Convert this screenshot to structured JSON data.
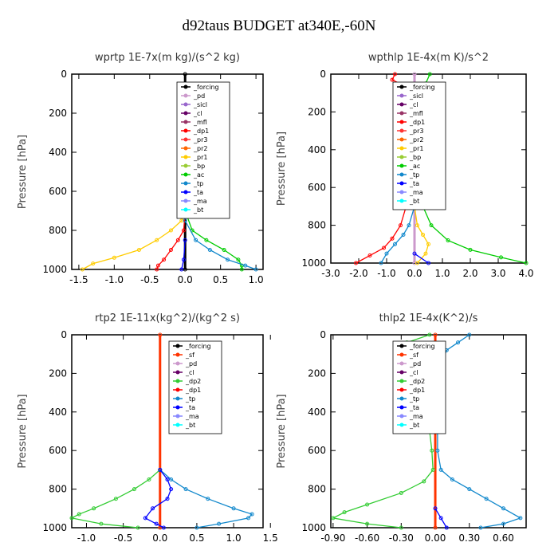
{
  "title": "d92taus  BUDGET at340E,-60N",
  "ylabel": "Pressure [hPa]",
  "colors": {
    "forcing": "#000000",
    "pd": "#cc99cc",
    "sicl": "#9966cc",
    "cl": "#660066",
    "mfl": "#993366",
    "dp1": "#ff0000",
    "pr3": "#ff3333",
    "pr2": "#ff6600",
    "pr1": "#ffcc00",
    "bp": "#99cc33",
    "ac": "#00cc00",
    "tp": "#1188cc",
    "ta": "#0000ff",
    "ma": "#8888ff",
    "bt": "#00ffff",
    "sf": "#ff3300",
    "dp2": "#33cc33"
  },
  "chart_data": [
    {
      "type": "line",
      "title": "wprtp  1E-7x(m kg)/(s^2 kg)",
      "xlim": [
        -1.6,
        1.1
      ],
      "xticks": [
        "-1.5",
        "-1.0",
        "-0.5",
        "0.0",
        "0.5",
        "1.0"
      ],
      "xtick_values": [
        -1.5,
        -1.0,
        -0.5,
        0.0,
        0.5,
        1.0
      ],
      "ylim": [
        1000,
        0
      ],
      "yticks": [
        "0",
        "200",
        "400",
        "600",
        "800",
        "1000"
      ],
      "ytick_values": [
        0,
        200,
        400,
        600,
        800,
        1000
      ],
      "legend": [
        "_forcing",
        "_pd",
        "_sicl",
        "_cl",
        "_mfl",
        "_dp1",
        "_pr3",
        "_pr2",
        "_pr1",
        "_bp",
        "_ac",
        "_tp",
        "_ta",
        "_ma",
        "_bt"
      ],
      "series": [
        {
          "name": "_forcing",
          "color_key": "forcing",
          "p": [
            0,
            1000
          ],
          "v": [
            0,
            0
          ]
        },
        {
          "name": "_pr1",
          "color_key": "pr1",
          "p": [
            700,
            750,
            800,
            850,
            900,
            940,
            970,
            1000
          ],
          "v": [
            0,
            -0.05,
            -0.2,
            -0.4,
            -0.65,
            -1.0,
            -1.3,
            -1.45
          ]
        },
        {
          "name": "_dp1",
          "color_key": "dp1",
          "p": [
            700,
            800,
            850,
            900,
            950,
            980,
            1000
          ],
          "v": [
            0,
            -0.02,
            -0.1,
            -0.2,
            -0.3,
            -0.38,
            -0.4
          ]
        },
        {
          "name": "_ac",
          "color_key": "ac",
          "p": [
            700,
            800,
            850,
            900,
            950,
            980,
            1000
          ],
          "v": [
            0,
            0.1,
            0.3,
            0.55,
            0.75,
            0.8,
            0.8
          ]
        },
        {
          "name": "_tp",
          "color_key": "tp",
          "p": [
            750,
            850,
            900,
            950,
            980,
            1000
          ],
          "v": [
            0,
            0.15,
            0.35,
            0.6,
            0.85,
            1.0
          ]
        },
        {
          "name": "_ta",
          "color_key": "ta",
          "p": [
            850,
            950,
            1000
          ],
          "v": [
            0,
            -0.02,
            -0.05
          ]
        }
      ]
    },
    {
      "type": "line",
      "title": "wpthlp  1E-4x(m K)/s^2",
      "xlim": [
        -3.0,
        4.0
      ],
      "xticks": [
        "-3.0",
        "-2.0",
        "-1.0",
        "0.0",
        "1.0",
        "2.0",
        "3.0",
        "4.0"
      ],
      "xtick_values": [
        -3,
        -2,
        -1,
        0,
        1,
        2,
        3,
        4
      ],
      "ylim": [
        1000,
        0
      ],
      "yticks": [
        "0",
        "200",
        "400",
        "600",
        "800",
        "1000"
      ],
      "ytick_values": [
        0,
        200,
        400,
        600,
        800,
        1000
      ],
      "legend": [
        "_forcing",
        "_sicl",
        "_cl",
        "_mfl",
        "_dp1",
        "_pr3",
        "_pr2",
        "_pr1",
        "_bp",
        "_ac",
        "_tp",
        "_ta",
        "_ma",
        "_bt"
      ],
      "series": [
        {
          "name": "_forcing",
          "color_key": "pd",
          "p": [
            0,
            1000
          ],
          "v": [
            0,
            0
          ]
        },
        {
          "name": "_ac",
          "color_key": "ac",
          "p": [
            0,
            50,
            100,
            200,
            300,
            400,
            500,
            600,
            700,
            800,
            880,
            930,
            970,
            1000
          ],
          "v": [
            0.55,
            0.4,
            0.35,
            0.3,
            0.28,
            0.25,
            0.25,
            0.25,
            0.3,
            0.6,
            1.2,
            2.0,
            3.1,
            4.0
          ]
        },
        {
          "name": "_dp1",
          "color_key": "dp1",
          "p": [
            0,
            30,
            60,
            100,
            200,
            300,
            400,
            500,
            600,
            700,
            800,
            870,
            920,
            960,
            1000
          ],
          "v": [
            -0.7,
            -0.8,
            -0.4,
            -0.3,
            -0.25,
            -0.25,
            -0.25,
            -0.25,
            -0.25,
            -0.3,
            -0.5,
            -0.8,
            -1.1,
            -1.6,
            -2.1
          ]
        },
        {
          "name": "_tp",
          "color_key": "tp",
          "p": [
            700,
            800,
            850,
            900,
            950,
            1000
          ],
          "v": [
            0,
            -0.2,
            -0.4,
            -0.7,
            -1.0,
            -1.2
          ]
        },
        {
          "name": "_pr1",
          "color_key": "pr1",
          "p": [
            700,
            800,
            850,
            900,
            950,
            1000
          ],
          "v": [
            0,
            0.1,
            0.3,
            0.5,
            0.4,
            0.1
          ]
        },
        {
          "name": "_ta",
          "color_key": "ta",
          "p": [
            950,
            1000
          ],
          "v": [
            0,
            0.5
          ]
        }
      ]
    },
    {
      "type": "line",
      "title": "rtp2  1E-11x(kg^2)/(kg^2 s)",
      "xlim": [
        -1.2,
        1.4
      ],
      "xticks": [
        "-1.0",
        "-0.5",
        "0.0",
        "0.5",
        "1.0",
        "1.5"
      ],
      "xtick_values": [
        -1.0,
        -0.5,
        0.0,
        0.5,
        1.0,
        1.5
      ],
      "ylim": [
        1000,
        0
      ],
      "yticks": [
        "0",
        "200",
        "400",
        "600",
        "800",
        "1000"
      ],
      "ytick_values": [
        0,
        200,
        400,
        600,
        800,
        1000
      ],
      "legend": [
        "_forcing",
        "_sf",
        "_pd",
        "_cl",
        "_dp2",
        "_dp1",
        "_tp",
        "_ta",
        "_ma",
        "_bt"
      ],
      "series": [
        {
          "name": "_forcing",
          "color_key": "sf",
          "p": [
            0,
            1000
          ],
          "v": [
            0,
            0
          ]
        },
        {
          "name": "_dp2",
          "color_key": "dp2",
          "p": [
            700,
            750,
            800,
            850,
            900,
            930,
            950,
            980,
            1000
          ],
          "v": [
            0,
            -0.15,
            -0.35,
            -0.6,
            -0.9,
            -1.1,
            -1.2,
            -0.8,
            -0.3
          ]
        },
        {
          "name": "_tp",
          "color_key": "tp",
          "p": [
            700,
            750,
            800,
            850,
            900,
            930,
            950,
            980,
            1000
          ],
          "v": [
            0,
            0.15,
            0.35,
            0.65,
            1.0,
            1.25,
            1.2,
            0.8,
            0.5
          ]
        },
        {
          "name": "_ta",
          "color_key": "ta",
          "p": [
            700,
            750,
            800,
            850,
            900,
            950,
            980,
            1000
          ],
          "v": [
            0,
            0.1,
            0.15,
            0.1,
            -0.1,
            -0.2,
            -0.05,
            0.05
          ]
        }
      ]
    },
    {
      "type": "line",
      "title": "thlp2  1E-4x(K^2)/s",
      "xlim": [
        -0.92,
        0.8
      ],
      "xticks": [
        "-0.90",
        "-0.60",
        "-0.30",
        "0.00",
        "0.30",
        "0.60"
      ],
      "xtick_values": [
        -0.9,
        -0.6,
        -0.3,
        0.0,
        0.3,
        0.6
      ],
      "ylim": [
        1000,
        0
      ],
      "yticks": [
        "0",
        "200",
        "400",
        "600",
        "800",
        "1000"
      ],
      "ytick_values": [
        0,
        200,
        400,
        600,
        800,
        1000
      ],
      "legend": [
        "_forcing",
        "_sf",
        "_pd",
        "_cl",
        "_dp2",
        "_dp1",
        "_tp",
        "_ta",
        "_ma",
        "_bt"
      ],
      "series": [
        {
          "name": "_forcing",
          "color_key": "sf",
          "p": [
            0,
            1000
          ],
          "v": [
            0,
            0
          ]
        },
        {
          "name": "_dp2",
          "color_key": "dp2",
          "p": [
            0,
            40,
            80,
            150,
            250,
            350,
            500,
            600,
            700,
            760,
            820,
            880,
            920,
            950,
            980,
            1000
          ],
          "v": [
            -0.05,
            -0.25,
            -0.2,
            -0.15,
            -0.12,
            -0.1,
            -0.05,
            -0.03,
            -0.02,
            -0.1,
            -0.3,
            -0.6,
            -0.8,
            -0.9,
            -0.6,
            -0.3
          ]
        },
        {
          "name": "_tp",
          "color_key": "tp",
          "p": [
            0,
            40,
            80,
            150,
            250,
            350,
            500,
            600,
            700,
            750,
            800,
            850,
            900,
            950,
            980,
            1000
          ],
          "v": [
            0.3,
            0.2,
            0.1,
            0.05,
            0.03,
            0.02,
            0.02,
            0.02,
            0.05,
            0.15,
            0.3,
            0.45,
            0.6,
            0.75,
            0.6,
            0.4
          ]
        },
        {
          "name": "_ta",
          "color_key": "ta",
          "p": [
            900,
            950,
            1000
          ],
          "v": [
            0,
            0.05,
            0.1
          ]
        }
      ]
    }
  ]
}
